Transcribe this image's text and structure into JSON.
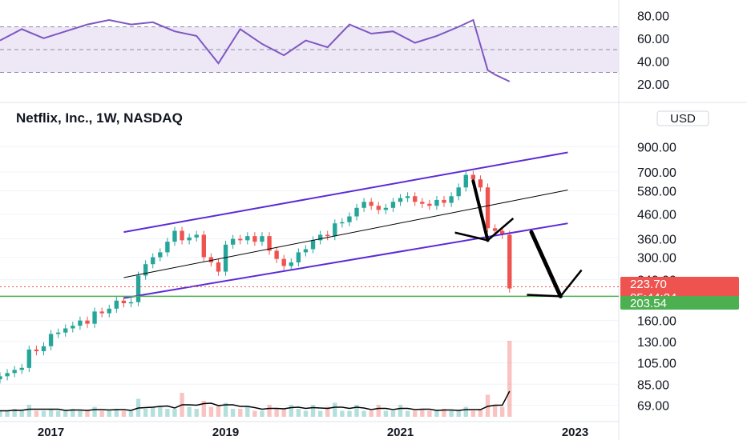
{
  "header": {
    "symbol_title": "Netflix, Inc., 1W, NASDAQ",
    "currency_button": "USD"
  },
  "colors": {
    "up": "#26a69a",
    "down": "#ef5350",
    "channel": "#5b2bd6",
    "midline": "#000000",
    "rsi_line": "#7e57c2",
    "rsi_band": "#ede7f6",
    "support": "#4caf50",
    "price_tag": "#ef5350",
    "support_tag": "#4caf50",
    "arrow": "#000000"
  },
  "price_scale_labels": [
    "900.00",
    "700.00",
    "580.00",
    "460.00",
    "360.00",
    "300.00",
    "240.00",
    "160.00",
    "130.00",
    "105.00",
    "85.00",
    "69.00"
  ],
  "rsi_scale_labels": [
    "80.00",
    "60.00",
    "40.00",
    "20.00"
  ],
  "time_labels": [
    "2017",
    "2019",
    "2021",
    "2023"
  ],
  "current_price_tag": {
    "price": "223.70",
    "countdown": "05:44:24"
  },
  "support_tag": {
    "price": "203.54"
  },
  "chart_data": [
    {
      "type": "line",
      "title": "",
      "series": [
        {
          "name": "",
          "x": [
            "2016-06",
            "2016-09",
            "2016-12",
            "2017-03",
            "2017-06",
            "2017-09",
            "2017-12",
            "2018-03",
            "2018-06",
            "2018-09",
            "2018-12",
            "2019-03",
            "2019-06",
            "2019-09",
            "2019-12",
            "2020-03",
            "2020-06",
            "2020-09",
            "2020-12",
            "2021-03",
            "2021-06",
            "2021-09",
            "2021-11",
            "2022-01",
            "2022-02",
            "2022-04"
          ],
          "y": [
            58,
            68,
            60,
            66,
            72,
            76,
            72,
            74,
            66,
            62,
            38,
            68,
            55,
            45,
            58,
            52,
            72,
            64,
            66,
            56,
            62,
            70,
            76,
            32,
            28,
            22
          ]
        }
      ],
      "ylim": [
        10,
        90
      ],
      "overbought": 70,
      "middle": 50,
      "oversold": 30
    },
    {
      "type": "candlestick",
      "title": "Netflix, Inc., 1W, NASDAQ",
      "log_scale": true,
      "x_range": [
        "2016-06",
        "2023-07"
      ],
      "ylim": [
        62,
        1100
      ],
      "series": [
        {
          "name": "",
          "x": [
            "2016-06",
            "2016-07",
            "2016-08",
            "2016-09",
            "2016-10",
            "2016-11",
            "2016-12",
            "2017-01",
            "2017-02",
            "2017-03",
            "2017-04",
            "2017-05",
            "2017-06",
            "2017-07",
            "2017-08",
            "2017-09",
            "2017-10",
            "2017-11",
            "2017-12",
            "2018-01",
            "2018-02",
            "2018-03",
            "2018-04",
            "2018-05",
            "2018-06",
            "2018-07",
            "2018-08",
            "2018-09",
            "2018-10",
            "2018-11",
            "2018-12",
            "2019-01",
            "2019-02",
            "2019-03",
            "2019-04",
            "2019-05",
            "2019-06",
            "2019-07",
            "2019-08",
            "2019-09",
            "2019-10",
            "2019-11",
            "2019-12",
            "2020-01",
            "2020-02",
            "2020-03",
            "2020-04",
            "2020-05",
            "2020-06",
            "2020-07",
            "2020-08",
            "2020-09",
            "2020-10",
            "2020-11",
            "2020-12",
            "2021-01",
            "2021-02",
            "2021-03",
            "2021-04",
            "2021-05",
            "2021-06",
            "2021-07",
            "2021-08",
            "2021-09",
            "2021-10",
            "2021-11",
            "2021-12",
            "2022-01",
            "2022-02",
            "2022-03",
            "2022-04"
          ],
          "close": [
            92,
            95,
            98,
            100,
            120,
            118,
            124,
            140,
            142,
            148,
            152,
            160,
            155,
            175,
            172,
            180,
            195,
            190,
            192,
            250,
            280,
            300,
            315,
            350,
            390,
            355,
            365,
            375,
            300,
            285,
            260,
            340,
            360,
            355,
            370,
            350,
            370,
            320,
            295,
            275,
            285,
            315,
            325,
            355,
            375,
            370,
            420,
            425,
            450,
            490,
            520,
            500,
            480,
            490,
            520,
            540,
            550,
            520,
            510,
            500,
            530,
            515,
            550,
            600,
            680,
            650,
            600,
            400,
            390,
            375,
            220
          ]
        }
      ],
      "volume": [
        3,
        3,
        4,
        3,
        6,
        3,
        3,
        4,
        3,
        3,
        4,
        3,
        3,
        5,
        3,
        3,
        4,
        3,
        3,
        9,
        4,
        5,
        5,
        4,
        4,
        12,
        5,
        4,
        8,
        5,
        6,
        7,
        4,
        4,
        5,
        3,
        3,
        6,
        4,
        4,
        6,
        4,
        3,
        6,
        3,
        5,
        7,
        3,
        3,
        6,
        3,
        3,
        6,
        3,
        3,
        6,
        3,
        3,
        4,
        3,
        3,
        4,
        3,
        3,
        5,
        3,
        4,
        11,
        6,
        5,
        38
      ],
      "annotations": {
        "channel_upper": {
          "from": [
            "2017-11",
            385
          ],
          "to": [
            "2022-12",
            850
          ]
        },
        "channel_middle": {
          "from": [
            "2017-11",
            245
          ],
          "to": [
            "2022-12",
            585
          ]
        },
        "channel_lower": {
          "from": [
            "2017-11",
            200
          ],
          "to": [
            "2022-12",
            420
          ]
        },
        "horizontal_support": 203.54,
        "current_price_line": 223.7
      }
    }
  ]
}
